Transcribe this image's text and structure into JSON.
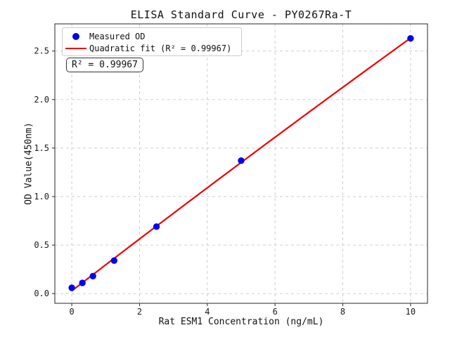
{
  "figure": {
    "background": "#ffffff",
    "spine_color": "#262626"
  },
  "chart_data": {
    "type": "scatter",
    "title": "ELISA Standard Curve - PY0267Ra-T",
    "xlabel": "Rat ESM1 Concentration (ng/mL)",
    "ylabel": "OD Value(450nm)",
    "xlim": [
      -0.5,
      10.5
    ],
    "ylim": [
      -0.1,
      2.78
    ],
    "xticks": [
      0,
      2,
      4,
      6,
      8,
      10
    ],
    "xtick_labels": [
      "0",
      "2",
      "4",
      "6",
      "8",
      "10"
    ],
    "yticks": [
      0,
      0.5,
      1.0,
      1.5,
      2.0,
      2.5
    ],
    "ytick_labels": [
      "0.0",
      "0.5",
      "1.0",
      "1.5",
      "2.0",
      "2.5"
    ],
    "grid": true,
    "grid_style": "dashed",
    "grid_color": "#c9c9c9",
    "legend_position": "upper-left",
    "series": [
      {
        "name": "Measured OD",
        "type": "scatter",
        "marker": "circle",
        "color": "#0000ee",
        "x": [
          0,
          0.3125,
          0.625,
          1.25,
          2.5,
          5,
          10
        ],
        "y": [
          0.06,
          0.11,
          0.18,
          0.34,
          0.69,
          1.37,
          2.63
        ]
      },
      {
        "name": "Quadratic fit (R² = 0.99967)",
        "type": "line",
        "fit": "quadratic",
        "color": "#ee0000"
      }
    ],
    "annotation": "R² = 0.99967",
    "r_squared": "0.99967"
  }
}
